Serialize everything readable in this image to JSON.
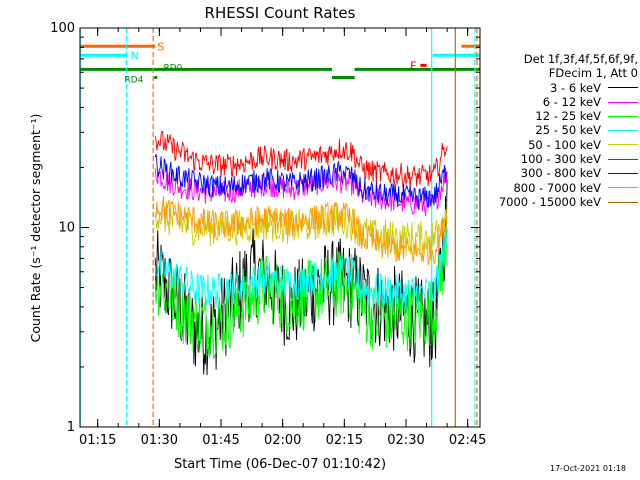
{
  "chart_data": {
    "type": "line",
    "title": "RHESSI Count Rates",
    "xlabel": "Start Time (06-Dec-07 01:10:42)",
    "ylabel": "Count Rate (s⁻¹ detector segment⁻¹)",
    "yscale": "log",
    "ylim": [
      1,
      100
    ],
    "xlim": [
      "01:10:42",
      "02:48:00"
    ],
    "x_tick_labels": [
      "01:15",
      "01:30",
      "01:45",
      "02:00",
      "02:15",
      "02:30",
      "02:45"
    ],
    "y_tick_labels": [
      "1",
      "10",
      "100"
    ],
    "legend_header": [
      "Det 1f,3f,4f,5f,6f,9f,",
      "FDecim 1, Att 0"
    ],
    "legend_position": "right",
    "grid": false,
    "series": [
      {
        "name": "3 - 6 keV",
        "color": "#000000",
        "x": [
          "01:29",
          "01:32",
          "01:35",
          "01:38",
          "01:41",
          "01:44",
          "01:47",
          "01:50",
          "01:53",
          "01:56",
          "01:59",
          "02:02",
          "02:05",
          "02:08",
          "02:11",
          "02:14",
          "02:17",
          "02:19",
          "02:22",
          "02:25",
          "02:28",
          "02:31",
          "02:34",
          "02:37",
          "02:40"
        ],
        "y": [
          6.0,
          5.0,
          4.0,
          3.1,
          3.0,
          3.2,
          4.0,
          5.0,
          6.0,
          5.5,
          4.5,
          4.0,
          4.3,
          5.0,
          5.2,
          5.3,
          5.1,
          4.6,
          4.2,
          4.0,
          3.8,
          3.6,
          3.3,
          3.2,
          12
        ]
      },
      {
        "name": "6 - 12 keV",
        "color": "#ff00ff",
        "x": [
          "01:29",
          "01:32",
          "01:35",
          "01:38",
          "01:41",
          "01:44",
          "01:47",
          "01:50",
          "01:53",
          "01:56",
          "01:59",
          "02:02",
          "02:05",
          "02:08",
          "02:11",
          "02:14",
          "02:17",
          "02:19",
          "02:22",
          "02:25",
          "02:28",
          "02:31",
          "02:34",
          "02:37",
          "02:40"
        ],
        "y": [
          19,
          17,
          16,
          15.5,
          15,
          14.8,
          15,
          15.5,
          16,
          16.5,
          16,
          15.5,
          16,
          16.5,
          17,
          17,
          16.5,
          14.5,
          14,
          13.8,
          13.5,
          13.2,
          13,
          13.2,
          19
        ]
      },
      {
        "name": "12 - 25 keV",
        "color": "#00ff00",
        "x": [
          "01:29",
          "01:32",
          "01:35",
          "01:38",
          "01:41",
          "01:44",
          "01:47",
          "01:50",
          "01:53",
          "01:56",
          "01:59",
          "02:02",
          "02:05",
          "02:08",
          "02:11",
          "02:14",
          "02:17",
          "02:19",
          "02:22",
          "02:25",
          "02:28",
          "02:31",
          "02:34",
          "02:37",
          "02:40"
        ],
        "y": [
          5.5,
          4.8,
          4.0,
          3.5,
          3.3,
          3.3,
          3.6,
          4.0,
          4.6,
          5.0,
          4.6,
          4.2,
          4.5,
          4.8,
          5.0,
          5.2,
          5.0,
          4.0,
          3.6,
          3.5,
          3.5,
          3.6,
          3.6,
          3.8,
          9
        ]
      },
      {
        "name": "25 - 50 keV",
        "color": "#00ffff",
        "x": [
          "01:29",
          "01:32",
          "01:35",
          "01:38",
          "01:41",
          "01:44",
          "01:47",
          "01:50",
          "01:53",
          "01:56",
          "01:59",
          "02:02",
          "02:05",
          "02:08",
          "02:11",
          "02:14",
          "02:17",
          "02:19",
          "02:22",
          "02:25",
          "02:28",
          "02:31",
          "02:34",
          "02:37",
          "02:40"
        ],
        "y": [
          6.5,
          6.0,
          5.5,
          5.0,
          4.8,
          4.8,
          5.0,
          5.2,
          5.4,
          5.6,
          5.4,
          5.2,
          5.4,
          5.6,
          5.8,
          6.0,
          5.8,
          5.0,
          4.8,
          4.8,
          4.7,
          4.7,
          4.7,
          4.8,
          9
        ]
      },
      {
        "name": "50 - 100 keV",
        "color": "#cccc00",
        "x": [
          "01:29",
          "01:32",
          "01:35",
          "01:38",
          "01:41",
          "01:44",
          "01:47",
          "01:50",
          "01:53",
          "01:56",
          "01:59",
          "02:02",
          "02:05",
          "02:08",
          "02:11",
          "02:14",
          "02:17",
          "02:19",
          "02:22",
          "02:25",
          "02:28",
          "02:31",
          "02:34",
          "02:37",
          "02:40"
        ],
        "y": [
          12,
          11,
          10.5,
          10,
          10,
          9.8,
          10,
          10,
          10.3,
          10.5,
          10.3,
          10,
          10.2,
          10.5,
          10.8,
          11,
          10.5,
          9.5,
          9.0,
          9.0,
          8.8,
          8.8,
          8.8,
          9.0,
          13
        ]
      },
      {
        "name": "100 - 300 keV",
        "color": "#ff0000",
        "x": [
          "01:29",
          "01:32",
          "01:35",
          "01:38",
          "01:41",
          "01:44",
          "01:47",
          "01:50",
          "01:53",
          "01:56",
          "01:59",
          "02:02",
          "02:05",
          "02:08",
          "02:11",
          "02:14",
          "02:17",
          "02:19",
          "02:22",
          "02:25",
          "02:28",
          "02:31",
          "02:34",
          "02:37",
          "02:40"
        ],
        "y": [
          28,
          26,
          24,
          22,
          21,
          20.5,
          20.5,
          21,
          22,
          22.5,
          22,
          21.5,
          22,
          22.5,
          23.5,
          25,
          24,
          20,
          19,
          18.5,
          18.5,
          18,
          18,
          18.5,
          27
        ]
      },
      {
        "name": "300 - 800 keV",
        "color": "#0000ff",
        "x": [
          "01:29",
          "01:32",
          "01:35",
          "01:38",
          "01:41",
          "01:44",
          "01:47",
          "01:50",
          "01:53",
          "01:56",
          "01:59",
          "02:02",
          "02:05",
          "02:08",
          "02:11",
          "02:14",
          "02:17",
          "02:19",
          "02:22",
          "02:25",
          "02:28",
          "02:31",
          "02:34",
          "02:37",
          "02:40"
        ],
        "y": [
          21,
          19,
          18,
          17,
          16.5,
          16,
          16,
          16.5,
          17,
          17.5,
          17,
          16.5,
          17,
          17.5,
          18,
          19,
          18,
          15.5,
          15,
          14.5,
          14.5,
          14.2,
          14,
          14.3,
          20
        ]
      },
      {
        "name": "800 - 7000 keV",
        "color": "#ff9900",
        "x": [
          "01:29",
          "01:32",
          "01:35",
          "01:38",
          "01:41",
          "01:44",
          "01:47",
          "01:50",
          "01:53",
          "01:56",
          "01:59",
          "02:02",
          "02:05",
          "02:08",
          "02:11",
          "02:14",
          "02:17",
          "02:19",
          "02:22",
          "02:25",
          "02:28",
          "02:31",
          "02:34",
          "02:37",
          "02:40"
        ],
        "y": [
          13,
          12,
          11.5,
          11,
          10.5,
          10.3,
          10.3,
          10.5,
          10.8,
          11,
          10.8,
          10.5,
          10.8,
          11,
          11.3,
          11.5,
          11,
          9.0,
          8.5,
          8.0,
          7.8,
          7.6,
          7.5,
          7.8,
          11
        ]
      },
      {
        "name": "7000 - 15000 keV",
        "color": "#996600",
        "x": [],
        "y": []
      }
    ],
    "annotations": [
      {
        "label": "S",
        "color": "#ff6600"
      },
      {
        "label": "N",
        "color": "#00ffff"
      },
      {
        "label": "RD0",
        "color": "#008800"
      },
      {
        "label": "RD4",
        "color": "#008800"
      },
      {
        "label": "F",
        "color": "#ff0000"
      }
    ],
    "attenuator_S_bars": [
      [
        "01:10:42",
        "01:29:00"
      ],
      [
        "02:43:30",
        "02:48:00"
      ]
    ],
    "night_N_bars": [
      [
        "01:10:42",
        "01:22:00"
      ],
      [
        "02:36:30",
        "02:48:00"
      ]
    ],
    "saa_bars": [
      [
        "01:10:42",
        "02:12:00"
      ],
      [
        "02:12:00",
        "02:17:30"
      ],
      [
        "02:17:30",
        "02:48:00"
      ]
    ],
    "flare_F_bar": [
      "02:33:30",
      "02:35:00"
    ],
    "vlines": [
      {
        "t": "01:10:45",
        "color": "#00ffff",
        "style": "solid"
      },
      {
        "t": "01:22:00",
        "color": "#00ffff",
        "style": "dashed"
      },
      {
        "t": "01:28:30",
        "color": "#ff6600",
        "style": "dashed"
      },
      {
        "t": "02:36:15",
        "color": "#00ffff",
        "style": "solid"
      },
      {
        "t": "02:42:00",
        "color": "#cc6600",
        "style": "solid"
      },
      {
        "t": "02:46:45",
        "color": "#00ffff",
        "style": "dashed"
      },
      {
        "t": "02:47:15",
        "color": "#ff6600",
        "style": "dashed"
      }
    ]
  },
  "footer": {
    "timestamp": "17-Oct-2021 01:18"
  }
}
